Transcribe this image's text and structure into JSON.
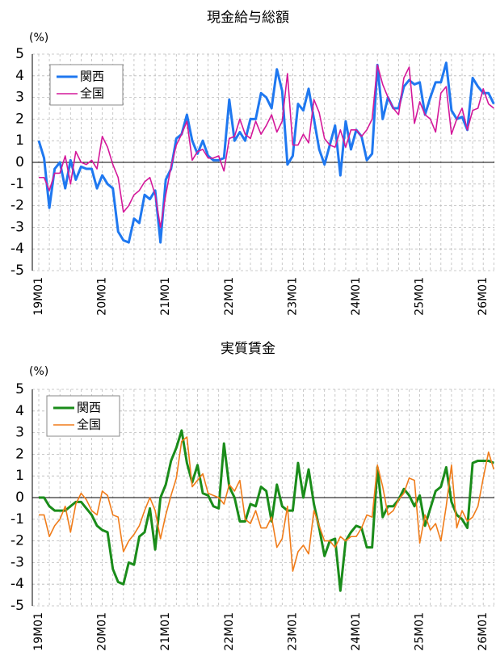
{
  "chart_data": [
    {
      "type": "line",
      "title": "現金給与総額",
      "y_unit": "(%)",
      "categories": [
        "19M01",
        null,
        null,
        null,
        null,
        null,
        null,
        null,
        null,
        null,
        null,
        null,
        "20M01",
        null,
        null,
        null,
        null,
        null,
        null,
        null,
        null,
        null,
        null,
        null,
        "21M01",
        null,
        null,
        null,
        null,
        null,
        null,
        null,
        null,
        null,
        null,
        null,
        "22M01",
        null,
        null,
        null,
        null,
        null,
        null,
        null,
        null,
        null,
        null,
        null,
        "23M01",
        null,
        null,
        null,
        null,
        null,
        null,
        null,
        null,
        null,
        null,
        null,
        "24M01",
        null,
        null,
        null,
        null,
        null,
        null,
        null,
        null,
        null,
        null,
        null,
        "25M01",
        null,
        null,
        null,
        null,
        null,
        null,
        null,
        null,
        null,
        null,
        null,
        "26M01",
        null,
        null
      ],
      "series": [
        {
          "name": "関西",
          "color": "#1f78f0",
          "values": [
            1.0,
            0.2,
            -2.1,
            -0.3,
            0.0,
            -1.2,
            0.1,
            -0.8,
            -0.2,
            -0.3,
            -0.3,
            -1.2,
            -0.6,
            -1.0,
            -1.2,
            -3.2,
            -3.6,
            -3.7,
            -2.6,
            -2.8,
            -1.5,
            -1.7,
            -1.3,
            -3.7,
            -0.8,
            -0.3,
            1.1,
            1.3,
            2.2,
            1.0,
            0.4,
            1.0,
            0.3,
            0.1,
            0.1,
            0.2,
            2.9,
            1.0,
            1.4,
            1.0,
            2.0,
            2.0,
            3.2,
            3.0,
            2.5,
            4.3,
            3.3,
            -0.1,
            0.3,
            2.7,
            2.4,
            3.4,
            2.0,
            0.6,
            -0.1,
            0.8,
            1.7,
            -0.6,
            1.9,
            0.6,
            1.5,
            1.2,
            0.1,
            0.4,
            4.5,
            2.0,
            3.0,
            2.5,
            2.5,
            3.5,
            3.8,
            3.6,
            3.7,
            2.2,
            3.0,
            3.7,
            3.7,
            4.6,
            2.4,
            2.0,
            2.1,
            1.5,
            3.9,
            3.5,
            3.2,
            3.2,
            2.7
          ]
        },
        {
          "name": "全国",
          "color": "#d4189a",
          "values": [
            -0.7,
            -0.7,
            -1.3,
            -0.5,
            -0.5,
            0.3,
            -1.0,
            0.5,
            0.0,
            -0.1,
            0.1,
            -0.3,
            1.2,
            0.7,
            -0.1,
            -0.7,
            -2.3,
            -2.0,
            -1.5,
            -1.3,
            -0.9,
            -0.7,
            -1.5,
            -3.0,
            -1.5,
            -0.2,
            0.8,
            1.3,
            1.9,
            0.1,
            0.5,
            0.6,
            0.2,
            0.2,
            0.3,
            -0.4,
            1.1,
            1.2,
            2.0,
            1.3,
            1.1,
            1.9,
            1.3,
            1.7,
            2.2,
            1.4,
            1.9,
            4.1,
            0.8,
            0.8,
            1.3,
            0.9,
            2.9,
            2.3,
            1.1,
            0.8,
            0.7,
            1.5,
            0.7,
            1.5,
            1.5,
            1.2,
            1.5,
            2.0,
            4.5,
            3.6,
            3.0,
            2.5,
            2.2,
            3.9,
            4.4,
            1.8,
            2.8,
            2.2,
            2.0,
            1.4,
            3.2,
            3.5,
            1.3,
            2.0,
            2.5,
            1.5,
            2.4,
            2.5,
            3.4,
            2.7,
            2.5
          ]
        }
      ],
      "ylim": [
        -5,
        5
      ],
      "yticks": [
        -5,
        -4,
        -3,
        -2,
        -1,
        0,
        1,
        2,
        3,
        4,
        5
      ],
      "grid": true
    },
    {
      "type": "line",
      "title": "実質賃金",
      "y_unit": "(%)",
      "categories": [
        "19M01",
        null,
        null,
        null,
        null,
        null,
        null,
        null,
        null,
        null,
        null,
        null,
        "20M01",
        null,
        null,
        null,
        null,
        null,
        null,
        null,
        null,
        null,
        null,
        null,
        "21M01",
        null,
        null,
        null,
        null,
        null,
        null,
        null,
        null,
        null,
        null,
        null,
        "22M01",
        null,
        null,
        null,
        null,
        null,
        null,
        null,
        null,
        null,
        null,
        null,
        "23M01",
        null,
        null,
        null,
        null,
        null,
        null,
        null,
        null,
        null,
        null,
        null,
        "24M01",
        null,
        null,
        null,
        null,
        null,
        null,
        null,
        null,
        null,
        null,
        null,
        "25M01",
        null,
        null,
        null,
        null,
        null,
        null,
        null,
        null,
        null,
        null,
        null,
        "26M01",
        null,
        null
      ],
      "series": [
        {
          "name": "関西",
          "color": "#1a8c1a",
          "values": [
            0.0,
            0.0,
            -0.4,
            -0.6,
            -0.6,
            -0.6,
            -0.4,
            -0.2,
            -0.2,
            -0.5,
            -0.8,
            -1.3,
            -1.5,
            -1.6,
            -3.3,
            -3.9,
            -4.0,
            -3.0,
            -3.1,
            -1.8,
            -1.6,
            -0.5,
            -2.4,
            0.0,
            0.6,
            1.7,
            2.3,
            3.1,
            1.6,
            0.7,
            1.5,
            0.2,
            0.1,
            -0.4,
            -0.5,
            2.5,
            0.5,
            0.0,
            -1.1,
            -1.1,
            -0.3,
            -0.4,
            0.5,
            0.3,
            -1.1,
            0.6,
            -0.4,
            -0.6,
            -0.6,
            1.6,
            0.0,
            1.3,
            -0.3,
            -1.4,
            -2.7,
            -2.0,
            -1.9,
            -4.3,
            -2.0,
            -1.6,
            -1.3,
            -1.4,
            -2.3,
            -2.3,
            1.4,
            -0.9,
            -0.4,
            -0.4,
            -0.1,
            0.4,
            0.1,
            -0.4,
            0.1,
            -1.3,
            -0.5,
            0.3,
            0.5,
            1.4,
            -0.2,
            -0.8,
            -1.0,
            -1.4,
            1.6,
            1.7,
            1.7,
            1.7,
            1.6
          ]
        },
        {
          "name": "全国",
          "color": "#f07c1a",
          "values": [
            -0.8,
            -0.8,
            -1.8,
            -1.3,
            -1.0,
            -0.4,
            -1.6,
            -0.3,
            0.2,
            -0.1,
            -0.6,
            -0.8,
            0.3,
            0.1,
            -0.8,
            -0.9,
            -2.5,
            -2.0,
            -1.7,
            -1.3,
            -0.6,
            0.0,
            -0.6,
            -1.9,
            -0.8,
            0.1,
            0.9,
            2.6,
            2.8,
            0.5,
            0.8,
            1.1,
            0.2,
            0.1,
            0.0,
            -0.3,
            0.6,
            0.3,
            0.8,
            -1.0,
            -1.2,
            -0.6,
            -1.4,
            -1.4,
            -0.9,
            -2.3,
            -1.9,
            -0.4,
            -3.4,
            -2.5,
            -2.2,
            -2.6,
            -0.6,
            -1.3,
            -2.0,
            -2.0,
            -2.3,
            -1.8,
            -2.0,
            -1.8,
            -1.8,
            -1.4,
            -0.8,
            -0.9,
            1.5,
            0.5,
            -0.8,
            -0.6,
            -0.1,
            0.2,
            0.9,
            0.8,
            -2.1,
            -0.8,
            -1.5,
            -1.2,
            -2.0,
            -0.4,
            1.5,
            -1.4,
            -0.6,
            -1.1,
            -0.9,
            -0.4,
            0.9,
            2.1,
            1.3
          ]
        }
      ],
      "ylim": [
        -5,
        5
      ],
      "yticks": [
        -5,
        -4,
        -3,
        -2,
        -1,
        0,
        1,
        2,
        3,
        4,
        5
      ],
      "grid": true
    }
  ]
}
